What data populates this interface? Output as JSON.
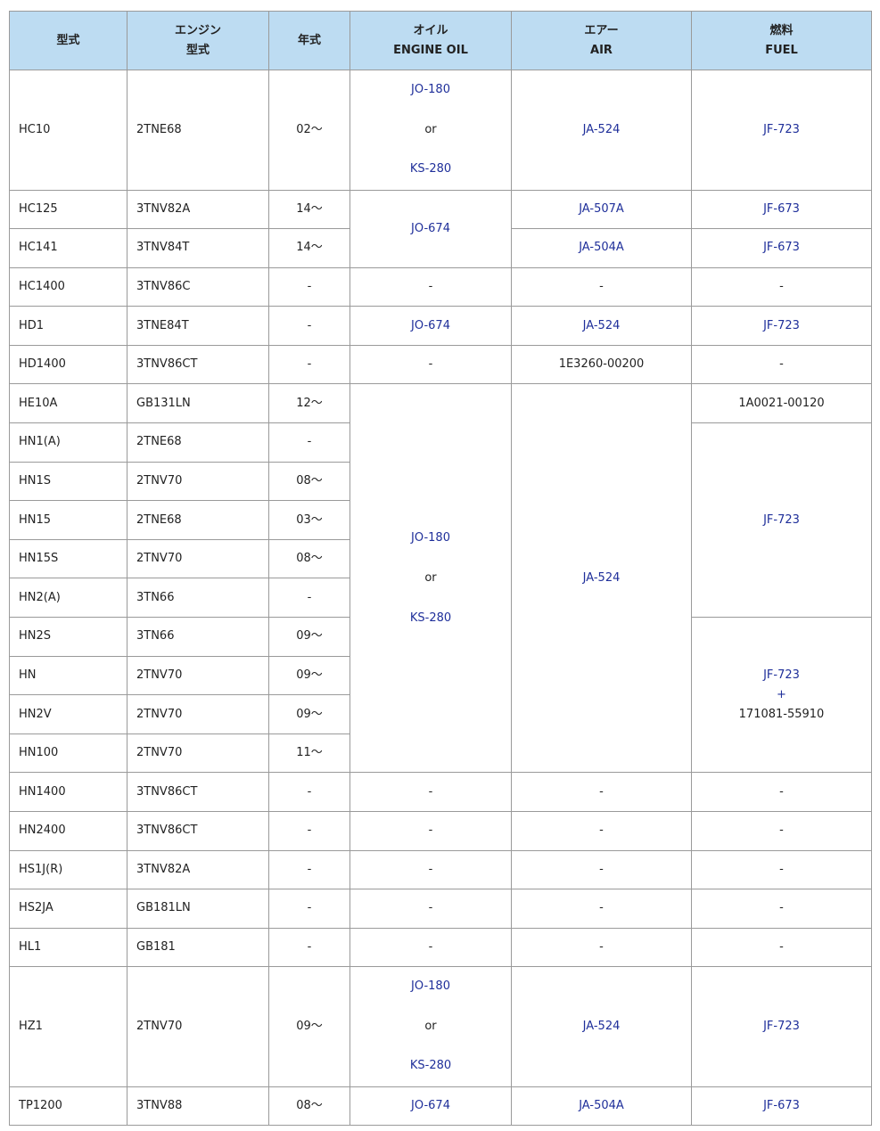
{
  "colors": {
    "header_bg": "#bddcf2",
    "link": "#1f2f9a",
    "border": "#9a9a9a"
  },
  "headers": [
    [
      "型式"
    ],
    [
      "エンジン",
      "型式"
    ],
    [
      "年式"
    ],
    [
      "オイル",
      "ENGINE OIL"
    ],
    [
      "エアー",
      "AIR"
    ],
    [
      "燃料",
      "FUEL"
    ]
  ],
  "rows": [
    {
      "tall": true,
      "cells": [
        {
          "t": [
            "HC10"
          ]
        },
        {
          "t": [
            "2TNE68"
          ]
        },
        {
          "t": [
            "02〜"
          ]
        },
        {
          "t": [
            "JO-180",
            "or",
            "KS-280"
          ],
          "link": [
            1,
            0,
            1
          ]
        },
        {
          "t": [
            "JA-524"
          ],
          "link": [
            1
          ]
        },
        {
          "t": [
            "JF-723"
          ],
          "link": [
            1
          ]
        }
      ]
    },
    {
      "cells": [
        {
          "t": [
            "HC125"
          ]
        },
        {
          "t": [
            "3TNV82A"
          ]
        },
        {
          "t": [
            "14〜"
          ]
        },
        {
          "t": [
            "JO-674"
          ],
          "link": [
            1
          ],
          "rowspan": 2
        },
        {
          "t": [
            "JA-507A"
          ],
          "link": [
            1
          ]
        },
        {
          "t": [
            "JF-673"
          ],
          "link": [
            1
          ]
        }
      ]
    },
    {
      "cells": [
        {
          "t": [
            "HC141"
          ]
        },
        {
          "t": [
            "3TNV84T"
          ]
        },
        {
          "t": [
            "14〜"
          ]
        },
        {
          "t": [
            "JA-504A"
          ],
          "link": [
            1
          ]
        },
        {
          "t": [
            "JF-673"
          ],
          "link": [
            1
          ]
        }
      ]
    },
    {
      "cells": [
        {
          "t": [
            "HC1400"
          ]
        },
        {
          "t": [
            "3TNV86C"
          ]
        },
        {
          "t": [
            "-"
          ]
        },
        {
          "t": [
            "-"
          ]
        },
        {
          "t": [
            "-"
          ]
        },
        {
          "t": [
            "-"
          ]
        }
      ]
    },
    {
      "cells": [
        {
          "t": [
            "HD1"
          ]
        },
        {
          "t": [
            "3TNE84T"
          ]
        },
        {
          "t": [
            "-"
          ]
        },
        {
          "t": [
            "JO-674"
          ],
          "link": [
            1
          ]
        },
        {
          "t": [
            "JA-524"
          ],
          "link": [
            1
          ]
        },
        {
          "t": [
            "JF-723"
          ],
          "link": [
            1
          ]
        }
      ]
    },
    {
      "cells": [
        {
          "t": [
            "HD1400"
          ]
        },
        {
          "t": [
            "3TNV86CT"
          ]
        },
        {
          "t": [
            "-"
          ]
        },
        {
          "t": [
            "-"
          ]
        },
        {
          "t": [
            "1E3260-00200"
          ]
        },
        {
          "t": [
            "-"
          ]
        }
      ]
    },
    {
      "cells": [
        {
          "t": [
            "HE10A"
          ]
        },
        {
          "t": [
            "GB131LN"
          ]
        },
        {
          "t": [
            "12〜"
          ]
        },
        {
          "t": [
            "JO-180",
            "or",
            "KS-280"
          ],
          "link": [
            1,
            0,
            1
          ],
          "rowspan": 10,
          "wide": true
        },
        {
          "t": [
            "JA-524"
          ],
          "link": [
            1
          ],
          "rowspan": 10
        },
        {
          "t": [
            "1A0021-00120"
          ]
        }
      ]
    },
    {
      "cells": [
        {
          "t": [
            "HN1(A)"
          ]
        },
        {
          "t": [
            "2TNE68"
          ]
        },
        {
          "t": [
            "-"
          ]
        },
        {
          "t": [
            "JF-723"
          ],
          "link": [
            1
          ],
          "rowspan": 5
        }
      ]
    },
    {
      "cells": [
        {
          "t": [
            "HN1S"
          ]
        },
        {
          "t": [
            "2TNV70"
          ]
        },
        {
          "t": [
            "08〜"
          ]
        }
      ]
    },
    {
      "cells": [
        {
          "t": [
            "HN15"
          ]
        },
        {
          "t": [
            "2TNE68"
          ]
        },
        {
          "t": [
            "03〜"
          ]
        }
      ]
    },
    {
      "cells": [
        {
          "t": [
            "HN15S"
          ]
        },
        {
          "t": [
            "2TNV70"
          ]
        },
        {
          "t": [
            "08〜"
          ]
        }
      ]
    },
    {
      "cells": [
        {
          "t": [
            "HN2(A)"
          ]
        },
        {
          "t": [
            "3TN66"
          ]
        },
        {
          "t": [
            "-"
          ]
        }
      ]
    },
    {
      "cells": [
        {
          "t": [
            "HN2S"
          ]
        },
        {
          "t": [
            "3TN66"
          ]
        },
        {
          "t": [
            "09〜"
          ]
        },
        {
          "t": [
            "JF-723",
            "+",
            "171081-55910"
          ],
          "link": [
            1,
            1,
            0
          ],
          "rowspan": 4
        }
      ]
    },
    {
      "cells": [
        {
          "t": [
            "HN"
          ]
        },
        {
          "t": [
            "2TNV70"
          ]
        },
        {
          "t": [
            "09〜"
          ]
        }
      ]
    },
    {
      "cells": [
        {
          "t": [
            "HN2V"
          ]
        },
        {
          "t": [
            "2TNV70"
          ]
        },
        {
          "t": [
            "09〜"
          ]
        }
      ]
    },
    {
      "cells": [
        {
          "t": [
            "HN100"
          ]
        },
        {
          "t": [
            "2TNV70"
          ]
        },
        {
          "t": [
            "11〜"
          ]
        }
      ]
    },
    {
      "cells": [
        {
          "t": [
            "HN1400"
          ]
        },
        {
          "t": [
            "3TNV86CT"
          ]
        },
        {
          "t": [
            "-"
          ]
        },
        {
          "t": [
            "-"
          ]
        },
        {
          "t": [
            "-"
          ]
        },
        {
          "t": [
            "-"
          ]
        }
      ]
    },
    {
      "cells": [
        {
          "t": [
            "HN2400"
          ]
        },
        {
          "t": [
            "3TNV86CT"
          ]
        },
        {
          "t": [
            "-"
          ]
        },
        {
          "t": [
            "-"
          ]
        },
        {
          "t": [
            "-"
          ]
        },
        {
          "t": [
            "-"
          ]
        }
      ]
    },
    {
      "cells": [
        {
          "t": [
            "HS1J(R)"
          ]
        },
        {
          "t": [
            "3TNV82A"
          ]
        },
        {
          "t": [
            "-"
          ]
        },
        {
          "t": [
            "-"
          ]
        },
        {
          "t": [
            "-"
          ]
        },
        {
          "t": [
            "-"
          ]
        }
      ]
    },
    {
      "cells": [
        {
          "t": [
            "HS2JA"
          ]
        },
        {
          "t": [
            "GB181LN"
          ]
        },
        {
          "t": [
            "-"
          ]
        },
        {
          "t": [
            "-"
          ]
        },
        {
          "t": [
            "-"
          ]
        },
        {
          "t": [
            "-"
          ]
        }
      ]
    },
    {
      "cells": [
        {
          "t": [
            "HL1"
          ]
        },
        {
          "t": [
            "GB181"
          ]
        },
        {
          "t": [
            "-"
          ]
        },
        {
          "t": [
            "-"
          ]
        },
        {
          "t": [
            "-"
          ]
        },
        {
          "t": [
            "-"
          ]
        }
      ]
    },
    {
      "tall": true,
      "cells": [
        {
          "t": [
            "HZ1"
          ]
        },
        {
          "t": [
            "2TNV70"
          ]
        },
        {
          "t": [
            "09〜"
          ]
        },
        {
          "t": [
            "JO-180",
            "or",
            "KS-280"
          ],
          "link": [
            1,
            0,
            1
          ]
        },
        {
          "t": [
            "JA-524"
          ],
          "link": [
            1
          ]
        },
        {
          "t": [
            "JF-723"
          ],
          "link": [
            1
          ]
        }
      ]
    },
    {
      "cells": [
        {
          "t": [
            "TP1200"
          ]
        },
        {
          "t": [
            "3TNV88"
          ]
        },
        {
          "t": [
            "08〜"
          ]
        },
        {
          "t": [
            "JO-674"
          ],
          "link": [
            1
          ]
        },
        {
          "t": [
            "JA-504A"
          ],
          "link": [
            1
          ]
        },
        {
          "t": [
            "JF-673"
          ],
          "link": [
            1
          ]
        }
      ]
    }
  ]
}
